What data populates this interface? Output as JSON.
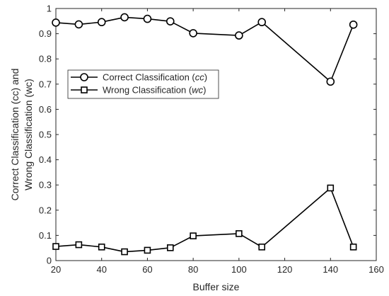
{
  "chart_data": {
    "type": "line",
    "title": "",
    "xlabel": "Buffer size",
    "ylabel": {
      "line1": "Correct Classification (cc) and",
      "line2": "Wrong Classification (wc)"
    },
    "xlim": [
      20,
      160
    ],
    "ylim": [
      0,
      1
    ],
    "xticks": [
      20,
      40,
      60,
      80,
      100,
      120,
      140,
      160
    ],
    "yticks": [
      0,
      0.1,
      0.2,
      0.3,
      0.4,
      0.5,
      0.6,
      0.7,
      0.8,
      0.9,
      1
    ],
    "grid": false,
    "legend_position": "center-left",
    "x": [
      20,
      30,
      40,
      50,
      60,
      70,
      80,
      100,
      110,
      140,
      150
    ],
    "series": [
      {
        "name": "Correct Classification (cc)",
        "name_plain": "Correct Classification (",
        "name_italic": "cc",
        "name_close": ")",
        "marker": "circle",
        "color": "#000000",
        "values": [
          0.944,
          0.937,
          0.946,
          0.965,
          0.959,
          0.949,
          0.902,
          0.893,
          0.946,
          0.71,
          0.936
        ]
      },
      {
        "name": "Wrong Classification (wc)",
        "name_plain": "Wrong Classification (",
        "name_italic": "wc",
        "name_close": ")",
        "marker": "square",
        "color": "#000000",
        "values": [
          0.056,
          0.063,
          0.054,
          0.035,
          0.041,
          0.051,
          0.098,
          0.107,
          0.054,
          0.288,
          0.054
        ]
      }
    ]
  }
}
